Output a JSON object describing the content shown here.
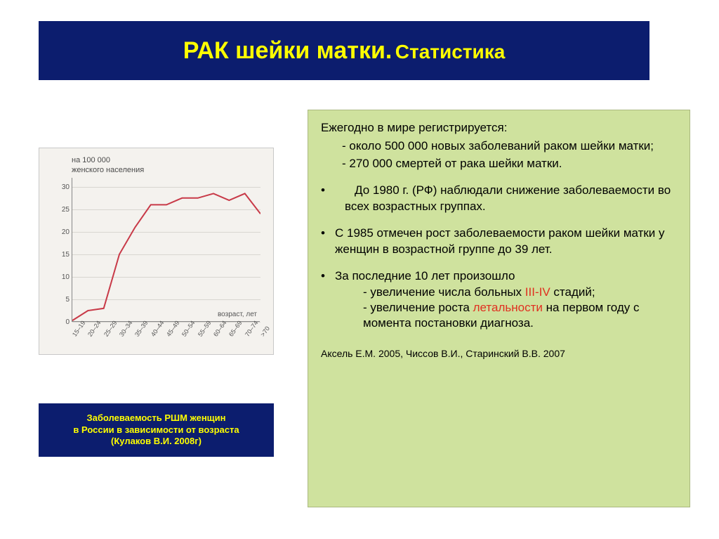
{
  "title": {
    "main": "РАК шейки матки.",
    "sub": "Статистика"
  },
  "chart": {
    "type": "line",
    "y_axis_label_l1": "на 100 000",
    "y_axis_label_l2": "женского населения",
    "x_axis_label": "возраст, лет",
    "y_ticks": [
      0,
      5,
      10,
      15,
      20,
      25,
      30
    ],
    "y_max": 32,
    "x_categories": [
      "15–19",
      "20–24",
      "25–29",
      "30–34",
      "35–39",
      "40–44",
      "45–49",
      "50–54",
      "55–59",
      "60–64",
      "65–69",
      "70–74",
      ">70"
    ],
    "values": [
      0.3,
      2.5,
      3,
      15,
      21,
      26,
      26,
      27.5,
      27.5,
      28.5,
      27,
      28.5,
      24
    ],
    "line_color": "#c83a48",
    "line_width": 2,
    "grid_color": "#d8d6d0",
    "axis_color": "#888888",
    "background": "#f4f2ee"
  },
  "caption": {
    "l1": "Заболеваемость РШМ женщин",
    "l2": "в России в зависимости от возраста",
    "l3": "(Кулаков В.И. 2008г)"
  },
  "panel": {
    "intro": "Ежегодно в мире регистрируется:",
    "fact1": "- около 500 000 новых заболеваний раком шейки матки;",
    "fact2": "- 270 000 смертей от рака шейки матки.",
    "b1": "До 1980 г. (РФ) наблюдали снижение заболеваемости во всех возрастных группах.",
    "b2": "С 1985 отмечен рост заболеваемости раком шейки матки у женщин в возрастной группе до 39 лет.",
    "b3": "За последние 10 лет произошло",
    "b3a_pre": "- увеличение числа больных ",
    "b3a_red": "III-IV",
    "b3a_post": " стадий;",
    "b3b_pre": "- увеличение роста ",
    "b3b_red": "летальности",
    "b3b_post": " на первом году с момента постановки диагноза.",
    "ref": "Аксель Е.М. 2005, Чиссов В.И., Старинский В.В. 2007"
  },
  "colors": {
    "title_bg": "#0c1d6e",
    "title_fg": "#ffff00",
    "panel_bg": "#cfe29e",
    "red": "#e03020"
  }
}
